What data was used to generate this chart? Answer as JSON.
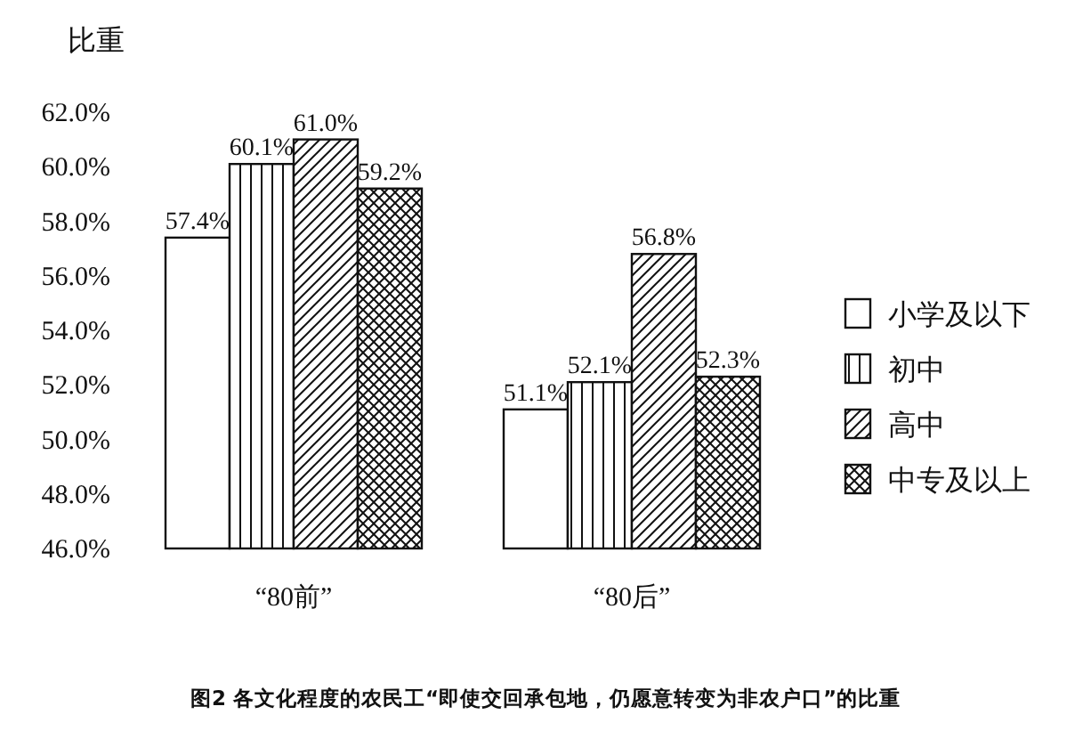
{
  "chart_data": {
    "type": "bar",
    "title": "图2  各文化程度的农民工“即使交回承包地，仍愿意转变为非农户口”的比重",
    "ylabel": "比重",
    "categories": [
      "“80前”",
      "“80后”"
    ],
    "series": [
      {
        "name": "小学及以下",
        "color": "#ffffff",
        "values": [
          57.4,
          51.1
        ],
        "value_labels": [
          "57.4%",
          "51.1%"
        ]
      },
      {
        "name": "初中",
        "color": "#111111",
        "values": [
          60.1,
          52.1
        ],
        "value_labels": [
          "60.1%",
          "52.1%"
        ]
      },
      {
        "name": "高中",
        "color": "#111111",
        "values": [
          61.0,
          56.8
        ],
        "value_labels": [
          "61.0%",
          "56.8%"
        ]
      },
      {
        "name": "中专及以上",
        "color": "#111111",
        "values": [
          59.2,
          52.3
        ],
        "value_labels": [
          "59.2%",
          "52.3%"
        ]
      }
    ],
    "ylim": [
      46,
      62
    ],
    "yticks": [
      {
        "value": 46,
        "label": "46.0%"
      },
      {
        "value": 48,
        "label": "48.0%"
      },
      {
        "value": 50,
        "label": "50.0%"
      },
      {
        "value": 52,
        "label": "52.0%"
      },
      {
        "value": 54,
        "label": "54.0%"
      },
      {
        "value": 56,
        "label": "56.0%"
      },
      {
        "value": 58,
        "label": "58.0%"
      },
      {
        "value": 60,
        "label": "60.0%"
      },
      {
        "value": 62,
        "label": "62.0%"
      }
    ],
    "grid": false,
    "legend": "right"
  }
}
